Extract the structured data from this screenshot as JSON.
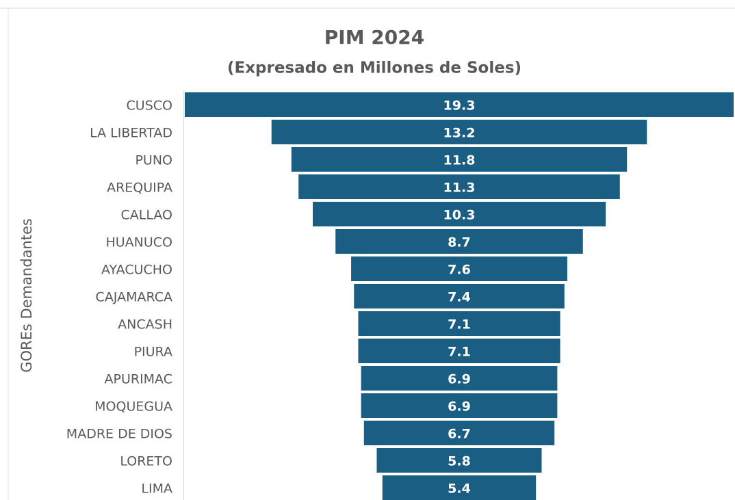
{
  "chart_data": {
    "type": "funnel",
    "title": "PIM 2024",
    "subtitle": "(Expresado en Millones de Soles)",
    "y_label": "GOREs Demandantes",
    "categories": [
      "CUSCO",
      "LA LIBERTAD",
      "PUNO",
      "AREQUIPA",
      "CALLAO",
      "HUANUCO",
      "AYACUCHO",
      "CAJAMARCA",
      "ANCASH",
      "PIURA",
      "APURIMAC",
      "MOQUEGUA",
      "MADRE DE DIOS",
      "LORETO",
      "LIMA"
    ],
    "values": [
      19.3,
      13.2,
      11.8,
      11.3,
      10.3,
      8.7,
      7.6,
      7.4,
      7.1,
      7.1,
      6.9,
      6.9,
      6.7,
      5.8,
      5.4
    ],
    "color": "#1b5e84"
  }
}
